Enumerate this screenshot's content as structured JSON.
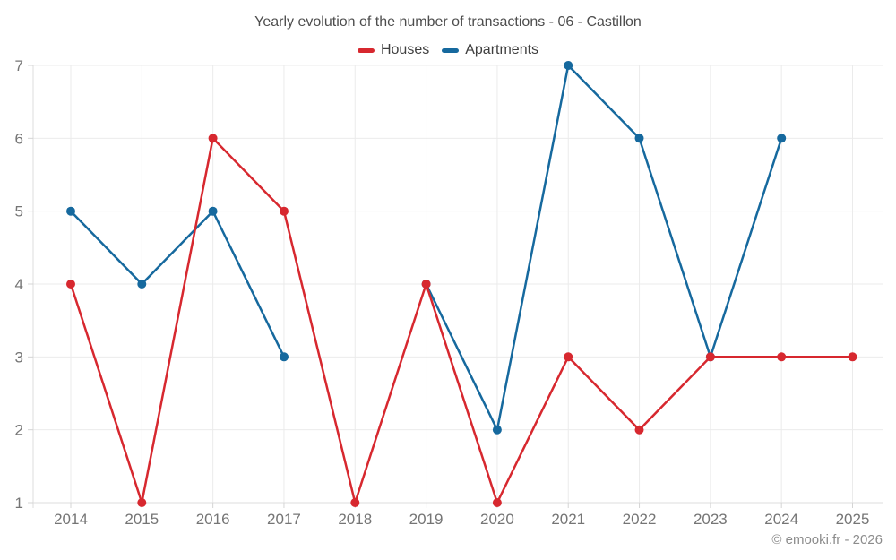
{
  "title": "Yearly evolution of the number of transactions - 06 - Castillon",
  "watermark": "© emooki.fr - 2026",
  "colors": {
    "houses": "#d7282f",
    "apartments": "#16699e",
    "gridline": "#ebebeb",
    "axis_line": "#dcdcdc",
    "tick_mark": "#d4d4d4",
    "axis_label": "#757575",
    "title_text": "#4d4d4d",
    "legend_text": "#3f3f3f",
    "watermark_text": "#8c8c8c",
    "background": "#ffffff"
  },
  "chart_data": {
    "type": "line",
    "title": "Yearly evolution of the number of transactions - 06 - Castillon",
    "categories": [
      "2014",
      "2015",
      "2016",
      "2017",
      "2018",
      "2019",
      "2020",
      "2021",
      "2022",
      "2023",
      "2024",
      "2025"
    ],
    "series": [
      {
        "name": "Houses",
        "color": "#d7282f",
        "values": [
          4,
          1,
          6,
          5,
          1,
          4,
          1,
          3,
          2,
          3,
          3,
          3
        ]
      },
      {
        "name": "Apartments",
        "color": "#16699e",
        "values": [
          5,
          4,
          5,
          3,
          null,
          4,
          2,
          7,
          6,
          3,
          6,
          null
        ]
      }
    ],
    "xlabel": "",
    "ylabel": "",
    "ylim": [
      1,
      7
    ],
    "yticks": [
      1,
      2,
      3,
      4,
      5,
      6,
      7
    ],
    "grid": true,
    "legend_position": "top",
    "marker_style": "filled-circle",
    "missing_points": {
      "Apartments": [
        "2018",
        "2025"
      ]
    }
  }
}
